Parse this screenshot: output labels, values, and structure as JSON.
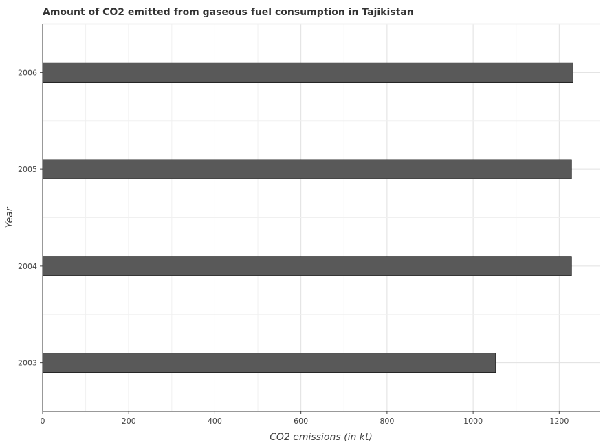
{
  "title": "Amount of CO2 emitted from gaseous fuel consumption in Tajikistan",
  "chart_data": {
    "type": "bar",
    "orientation": "horizontal",
    "title": "Amount of CO2 emitted from gaseous fuel consumption in Tajikistan",
    "xlabel": "CO2 emissions (in kt)",
    "ylabel": "Year",
    "categories": [
      "2003",
      "2004",
      "2005",
      "2006"
    ],
    "values": [
      1052.429,
      1228.445,
      1228.445,
      1232.112
    ],
    "xlim": [
      0,
      1293.7
    ],
    "xticks": [
      "0",
      "200",
      "400",
      "600",
      "800",
      "1000",
      "1200"
    ],
    "grid": true,
    "legend": "none",
    "bar_color": "#595959",
    "bar_border_color": "#1a1a1a"
  }
}
